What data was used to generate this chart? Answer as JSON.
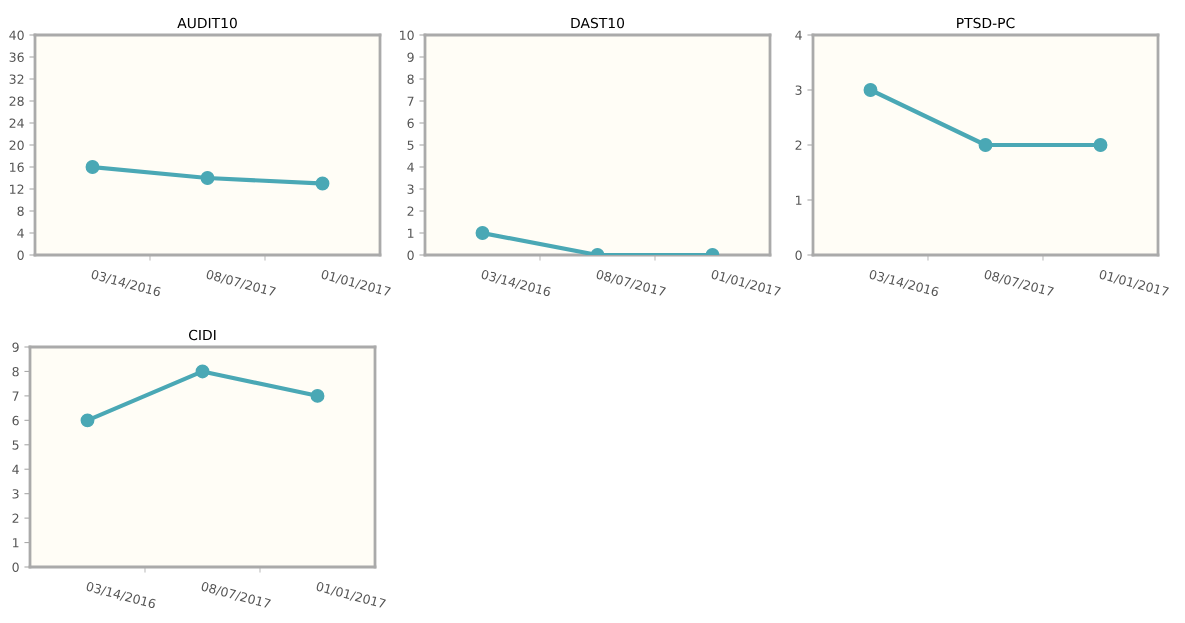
{
  "chart_data": [
    {
      "type": "line",
      "title": "AUDIT10",
      "categories": [
        "03/14/2016",
        "08/07/2017",
        "01/01/2017"
      ],
      "series": [
        {
          "color": "#4aa8b5",
          "values": [
            16,
            14,
            13
          ]
        }
      ],
      "ylim": [
        0,
        40
      ],
      "yticks": [
        0,
        4,
        8,
        12,
        16,
        20,
        24,
        28,
        32,
        36,
        40
      ],
      "marker": "circle",
      "line_style": "solid",
      "grid": false,
      "legend": false
    },
    {
      "type": "line",
      "title": "DAST10",
      "categories": [
        "03/14/2016",
        "08/07/2017",
        "01/01/2017"
      ],
      "series": [
        {
          "color": "#4aa8b5",
          "values": [
            1,
            0,
            0
          ]
        }
      ],
      "ylim": [
        0,
        10
      ],
      "yticks": [
        0,
        1,
        2,
        3,
        4,
        5,
        6,
        7,
        8,
        9,
        10
      ],
      "marker": "circle",
      "line_style": "solid",
      "grid": false,
      "legend": false
    },
    {
      "type": "line",
      "title": "PTSD-PC",
      "categories": [
        "03/14/2016",
        "08/07/2017",
        "01/01/2017"
      ],
      "series": [
        {
          "color": "#4aa8b5",
          "values": [
            3,
            2,
            2
          ]
        }
      ],
      "ylim": [
        0,
        4
      ],
      "yticks": [
        0,
        1,
        2,
        3,
        4
      ],
      "marker": "circle",
      "line_style": "solid",
      "grid": false,
      "legend": false
    },
    {
      "type": "line",
      "title": "CIDI",
      "categories": [
        "03/14/2016",
        "08/07/2017",
        "01/01/2017"
      ],
      "series": [
        {
          "color": "#4aa8b5",
          "values": [
            6,
            8,
            7
          ]
        }
      ],
      "ylim": [
        0,
        9
      ],
      "yticks": [
        0,
        1,
        2,
        3,
        4,
        5,
        6,
        7,
        8,
        9
      ],
      "marker": "circle",
      "line_style": "solid",
      "grid": false,
      "legend": false
    }
  ]
}
